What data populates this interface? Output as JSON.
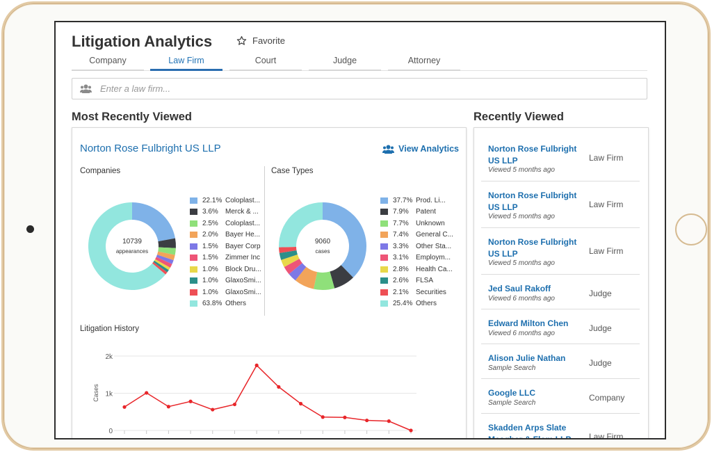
{
  "app": {
    "title": "Litigation Analytics",
    "favorite_label": "Favorite"
  },
  "tabs": [
    {
      "label": "Company",
      "active": false
    },
    {
      "label": "Law Firm",
      "active": true
    },
    {
      "label": "Court",
      "active": false
    },
    {
      "label": "Judge",
      "active": false
    },
    {
      "label": "Attorney",
      "active": false
    }
  ],
  "search": {
    "placeholder": "Enter a law firm...",
    "value": ""
  },
  "most_recent": {
    "heading": "Most Recently Viewed",
    "firm_name": "Norton Rose Fulbright US LLP",
    "view_analytics_label": "View Analytics",
    "companies": {
      "heading": "Companies",
      "center_value": "10739",
      "center_label": "appearances"
    },
    "case_types": {
      "heading": "Case Types",
      "center_value": "9060",
      "center_label": "cases"
    },
    "history": {
      "heading": "Litigation History"
    }
  },
  "recently_viewed": {
    "heading": "Recently Viewed",
    "items": [
      {
        "name_line1": "Norton Rose Fulbright",
        "name_line2": "US LLP",
        "meta": "Viewed 5 months ago",
        "type": "Law Firm"
      },
      {
        "name_line1": "Norton Rose Fulbright",
        "name_line2": "US LLP",
        "meta": "Viewed 5 months ago",
        "type": "Law Firm"
      },
      {
        "name_line1": "Norton Rose Fulbright",
        "name_line2": "US LLP",
        "meta": "Viewed 5 months ago",
        "type": "Law Firm"
      },
      {
        "name_line1": "Jed Saul Rakoff",
        "name_line2": "",
        "meta": "Viewed 6 months ago",
        "type": "Judge"
      },
      {
        "name_line1": "Edward Milton Chen",
        "name_line2": "",
        "meta": "Viewed 6 months ago",
        "type": "Judge"
      },
      {
        "name_line1": "Alison Julie Nathan",
        "name_line2": "",
        "meta": "Sample Search",
        "type": "Judge"
      },
      {
        "name_line1": "Google LLC",
        "name_line2": "",
        "meta": "Sample Search",
        "type": "Company"
      },
      {
        "name_line1": "Skadden Arps Slate",
        "name_line2": "Meagher & Flom LLP",
        "meta": "",
        "type": "Law Firm"
      }
    ]
  },
  "colors": {
    "accent": "#1d6fae",
    "tab_active": "#2a6db0",
    "line": "#e8262a"
  },
  "icons": {
    "favorite": "star-outline-icon",
    "search": "people-icon",
    "view_analytics": "people-icon"
  },
  "chart_data": [
    {
      "type": "pie",
      "title": "Companies",
      "center_text": "10739 appearances",
      "series": [
        {
          "label": "22.1%",
          "name": "Coloplast...",
          "value": 22.1,
          "color": "#7fb2e8"
        },
        {
          "label": "3.6%",
          "name": "Merck & ...",
          "value": 3.6,
          "color": "#3b3d42"
        },
        {
          "label": "2.5%",
          "name": "Coloplast...",
          "value": 2.5,
          "color": "#8fe07a"
        },
        {
          "label": "2.0%",
          "name": "Bayer He...",
          "value": 2.0,
          "color": "#f2a45a"
        },
        {
          "label": "1.5%",
          "name": "Bayer Corp",
          "value": 1.5,
          "color": "#7d78e6"
        },
        {
          "label": "1.5%",
          "name": "Zimmer Inc",
          "value": 1.5,
          "color": "#ee5577"
        },
        {
          "label": "1.0%",
          "name": "Block Dru...",
          "value": 1.0,
          "color": "#e8d84a"
        },
        {
          "label": "1.0%",
          "name": "GlaxoSmi...",
          "value": 1.0,
          "color": "#2b8f8a"
        },
        {
          "label": "1.0%",
          "name": "GlaxoSmi...",
          "value": 1.0,
          "color": "#ee4f55"
        },
        {
          "label": "63.8%",
          "name": "Others",
          "value": 63.8,
          "color": "#92e6de"
        }
      ]
    },
    {
      "type": "pie",
      "title": "Case Types",
      "center_text": "9060 cases",
      "series": [
        {
          "label": "37.7%",
          "name": "Prod. Li...",
          "value": 37.7,
          "color": "#7fb2e8"
        },
        {
          "label": "7.9%",
          "name": "Patent",
          "value": 7.9,
          "color": "#3b3d42"
        },
        {
          "label": "7.7%",
          "name": "Unknown",
          "value": 7.7,
          "color": "#8fe07a"
        },
        {
          "label": "7.4%",
          "name": "General C...",
          "value": 7.4,
          "color": "#f2a45a"
        },
        {
          "label": "3.3%",
          "name": "Other Sta...",
          "value": 3.3,
          "color": "#7d78e6"
        },
        {
          "label": "3.1%",
          "name": "Employm...",
          "value": 3.1,
          "color": "#ee5577"
        },
        {
          "label": "2.8%",
          "name": "Health Ca...",
          "value": 2.8,
          "color": "#e8d84a"
        },
        {
          "label": "2.6%",
          "name": "FLSA",
          "value": 2.6,
          "color": "#2b8f8a"
        },
        {
          "label": "2.1%",
          "name": "Securities",
          "value": 2.1,
          "color": "#ee4f55"
        },
        {
          "label": "25.4%",
          "name": "Others",
          "value": 25.4,
          "color": "#92e6de"
        }
      ]
    },
    {
      "type": "line",
      "title": "Litigation History",
      "ylabel": "Cases",
      "ylim": [
        0,
        2000
      ],
      "yticks": [
        {
          "value": 0,
          "label": "0"
        },
        {
          "value": 1000,
          "label": "1k"
        },
        {
          "value": 2000,
          "label": "2k"
        }
      ],
      "x": [
        1,
        2,
        3,
        4,
        5,
        6,
        7,
        8,
        9,
        10,
        11,
        12,
        13,
        14
      ],
      "series": [
        {
          "values": [
            630,
            1010,
            640,
            780,
            560,
            700,
            1750,
            1170,
            720,
            360,
            350,
            270,
            250,
            0
          ],
          "color": "#e8262a"
        }
      ],
      "grid": true
    }
  ]
}
